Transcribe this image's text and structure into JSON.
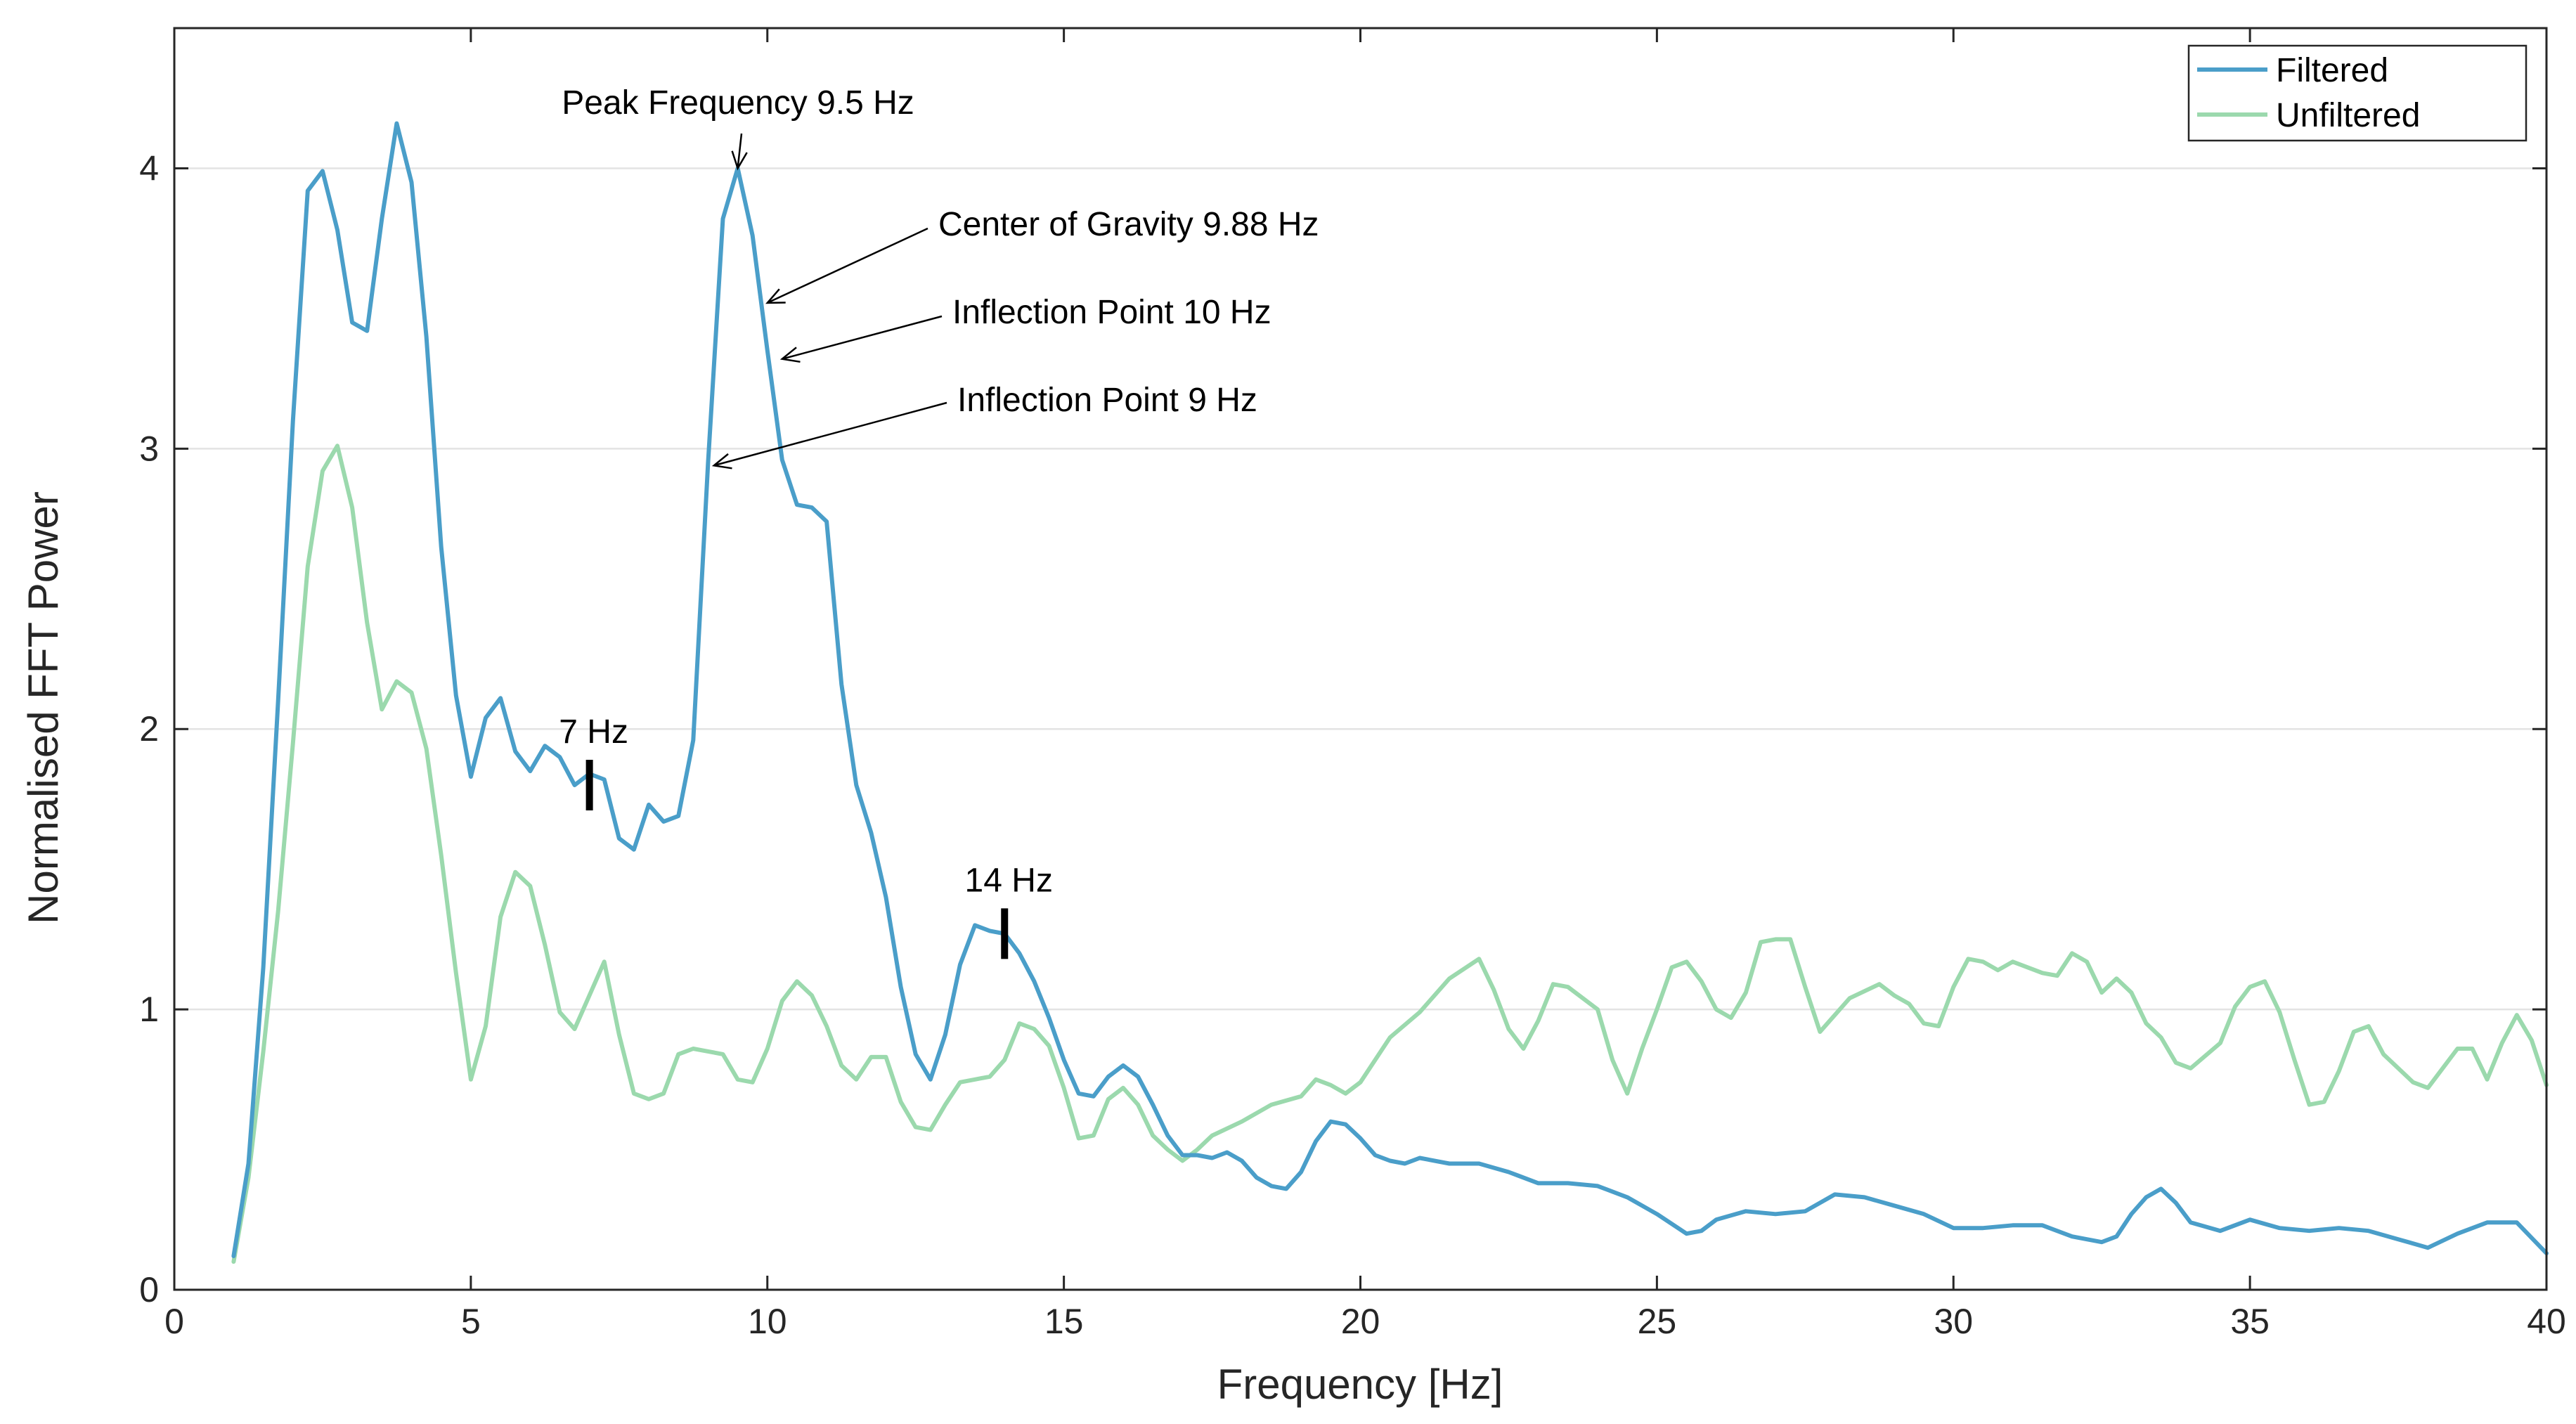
{
  "chart_data": {
    "type": "line",
    "xlabel": "Frequency [Hz]",
    "ylabel": "Normalised FFT Power",
    "xlim": [
      0,
      40
    ],
    "ylim": [
      0,
      4.5
    ],
    "xticks": [
      0,
      5,
      10,
      15,
      20,
      25,
      30,
      35,
      40
    ],
    "yticks": [
      0,
      1,
      2,
      3,
      4
    ],
    "grid": "horizontal",
    "legend_position": "top-right",
    "series": [
      {
        "name": "Filtered",
        "color": "#4a9ec9",
        "points": [
          [
            1.0,
            0.12
          ],
          [
            1.25,
            0.45
          ],
          [
            1.5,
            1.15
          ],
          [
            1.75,
            2.1
          ],
          [
            2.0,
            3.1
          ],
          [
            2.25,
            3.92
          ],
          [
            2.5,
            3.99
          ],
          [
            2.75,
            3.78
          ],
          [
            3.0,
            3.45
          ],
          [
            3.25,
            3.42
          ],
          [
            3.5,
            3.82
          ],
          [
            3.75,
            4.16
          ],
          [
            4.0,
            3.95
          ],
          [
            4.25,
            3.4
          ],
          [
            4.5,
            2.65
          ],
          [
            4.75,
            2.12
          ],
          [
            5.0,
            1.83
          ],
          [
            5.25,
            2.04
          ],
          [
            5.5,
            2.11
          ],
          [
            5.75,
            1.92
          ],
          [
            6.0,
            1.85
          ],
          [
            6.25,
            1.94
          ],
          [
            6.5,
            1.9
          ],
          [
            6.75,
            1.8
          ],
          [
            7.0,
            1.84
          ],
          [
            7.25,
            1.82
          ],
          [
            7.5,
            1.61
          ],
          [
            7.75,
            1.57
          ],
          [
            8.0,
            1.73
          ],
          [
            8.25,
            1.67
          ],
          [
            8.5,
            1.69
          ],
          [
            8.75,
            1.96
          ],
          [
            9.0,
            2.95
          ],
          [
            9.25,
            3.82
          ],
          [
            9.5,
            4.0
          ],
          [
            9.75,
            3.76
          ],
          [
            10.0,
            3.35
          ],
          [
            10.25,
            2.96
          ],
          [
            10.5,
            2.8
          ],
          [
            10.75,
            2.79
          ],
          [
            11.0,
            2.74
          ],
          [
            11.25,
            2.16
          ],
          [
            11.5,
            1.8
          ],
          [
            11.75,
            1.63
          ],
          [
            12.0,
            1.4
          ],
          [
            12.25,
            1.08
          ],
          [
            12.5,
            0.84
          ],
          [
            12.75,
            0.75
          ],
          [
            13.0,
            0.91
          ],
          [
            13.25,
            1.16
          ],
          [
            13.5,
            1.3
          ],
          [
            13.75,
            1.28
          ],
          [
            14.0,
            1.27
          ],
          [
            14.25,
            1.2
          ],
          [
            14.5,
            1.1
          ],
          [
            14.75,
            0.97
          ],
          [
            15.0,
            0.82
          ],
          [
            15.25,
            0.7
          ],
          [
            15.5,
            0.69
          ],
          [
            15.75,
            0.76
          ],
          [
            16.0,
            0.8
          ],
          [
            16.25,
            0.76
          ],
          [
            16.5,
            0.66
          ],
          [
            16.75,
            0.55
          ],
          [
            17.0,
            0.48
          ],
          [
            17.25,
            0.48
          ],
          [
            17.5,
            0.47
          ],
          [
            17.75,
            0.49
          ],
          [
            18.0,
            0.46
          ],
          [
            18.25,
            0.4
          ],
          [
            18.5,
            0.37
          ],
          [
            18.75,
            0.36
          ],
          [
            19.0,
            0.42
          ],
          [
            19.25,
            0.53
          ],
          [
            19.5,
            0.6
          ],
          [
            19.75,
            0.59
          ],
          [
            20.0,
            0.54
          ],
          [
            20.25,
            0.48
          ],
          [
            20.5,
            0.46
          ],
          [
            20.75,
            0.45
          ],
          [
            21.0,
            0.47
          ],
          [
            21.5,
            0.45
          ],
          [
            22.0,
            0.45
          ],
          [
            22.5,
            0.42
          ],
          [
            23.0,
            0.38
          ],
          [
            23.5,
            0.38
          ],
          [
            24.0,
            0.37
          ],
          [
            24.5,
            0.33
          ],
          [
            25.0,
            0.27
          ],
          [
            25.5,
            0.2
          ],
          [
            25.75,
            0.21
          ],
          [
            26.0,
            0.25
          ],
          [
            26.5,
            0.28
          ],
          [
            27.0,
            0.27
          ],
          [
            27.5,
            0.28
          ],
          [
            28.0,
            0.34
          ],
          [
            28.5,
            0.33
          ],
          [
            29.0,
            0.3
          ],
          [
            29.5,
            0.27
          ],
          [
            30.0,
            0.22
          ],
          [
            30.5,
            0.22
          ],
          [
            31.0,
            0.23
          ],
          [
            31.5,
            0.23
          ],
          [
            32.0,
            0.19
          ],
          [
            32.5,
            0.17
          ],
          [
            32.75,
            0.19
          ],
          [
            33.0,
            0.27
          ],
          [
            33.25,
            0.33
          ],
          [
            33.5,
            0.36
          ],
          [
            33.75,
            0.31
          ],
          [
            34.0,
            0.24
          ],
          [
            34.5,
            0.21
          ],
          [
            35.0,
            0.25
          ],
          [
            35.5,
            0.22
          ],
          [
            36.0,
            0.21
          ],
          [
            36.5,
            0.22
          ],
          [
            37.0,
            0.21
          ],
          [
            37.5,
            0.18
          ],
          [
            38.0,
            0.15
          ],
          [
            38.5,
            0.2
          ],
          [
            39.0,
            0.24
          ],
          [
            39.5,
            0.24
          ],
          [
            40.0,
            0.13
          ]
        ]
      },
      {
        "name": "Unfiltered",
        "color": "#9bd9ad",
        "points": [
          [
            1.0,
            0.1
          ],
          [
            1.25,
            0.4
          ],
          [
            1.5,
            0.85
          ],
          [
            1.75,
            1.35
          ],
          [
            2.0,
            1.95
          ],
          [
            2.25,
            2.58
          ],
          [
            2.5,
            2.92
          ],
          [
            2.75,
            3.01
          ],
          [
            3.0,
            2.79
          ],
          [
            3.25,
            2.38
          ],
          [
            3.5,
            2.07
          ],
          [
            3.75,
            2.17
          ],
          [
            4.0,
            2.13
          ],
          [
            4.25,
            1.93
          ],
          [
            4.5,
            1.55
          ],
          [
            4.75,
            1.13
          ],
          [
            5.0,
            0.75
          ],
          [
            5.25,
            0.94
          ],
          [
            5.5,
            1.33
          ],
          [
            5.75,
            1.49
          ],
          [
            6.0,
            1.44
          ],
          [
            6.25,
            1.23
          ],
          [
            6.5,
            0.99
          ],
          [
            6.75,
            0.93
          ],
          [
            7.0,
            1.05
          ],
          [
            7.25,
            1.17
          ],
          [
            7.5,
            0.91
          ],
          [
            7.75,
            0.7
          ],
          [
            8.0,
            0.68
          ],
          [
            8.25,
            0.7
          ],
          [
            8.5,
            0.84
          ],
          [
            8.75,
            0.86
          ],
          [
            9.0,
            0.85
          ],
          [
            9.25,
            0.84
          ],
          [
            9.5,
            0.75
          ],
          [
            9.75,
            0.74
          ],
          [
            10.0,
            0.86
          ],
          [
            10.25,
            1.03
          ],
          [
            10.5,
            1.1
          ],
          [
            10.75,
            1.05
          ],
          [
            11.0,
            0.94
          ],
          [
            11.25,
            0.8
          ],
          [
            11.5,
            0.75
          ],
          [
            11.75,
            0.83
          ],
          [
            12.0,
            0.83
          ],
          [
            12.25,
            0.67
          ],
          [
            12.5,
            0.58
          ],
          [
            12.75,
            0.57
          ],
          [
            13.0,
            0.66
          ],
          [
            13.25,
            0.74
          ],
          [
            13.5,
            0.75
          ],
          [
            13.75,
            0.76
          ],
          [
            14.0,
            0.82
          ],
          [
            14.25,
            0.95
          ],
          [
            14.5,
            0.93
          ],
          [
            14.75,
            0.87
          ],
          [
            15.0,
            0.72
          ],
          [
            15.25,
            0.54
          ],
          [
            15.5,
            0.55
          ],
          [
            15.75,
            0.68
          ],
          [
            16.0,
            0.72
          ],
          [
            16.25,
            0.66
          ],
          [
            16.5,
            0.55
          ],
          [
            16.75,
            0.5
          ],
          [
            17.0,
            0.46
          ],
          [
            17.25,
            0.5
          ],
          [
            17.5,
            0.55
          ],
          [
            18.0,
            0.6
          ],
          [
            18.5,
            0.66
          ],
          [
            19.0,
            0.69
          ],
          [
            19.25,
            0.75
          ],
          [
            19.5,
            0.73
          ],
          [
            19.75,
            0.7
          ],
          [
            20.0,
            0.74
          ],
          [
            20.5,
            0.9
          ],
          [
            21.0,
            0.99
          ],
          [
            21.5,
            1.11
          ],
          [
            22.0,
            1.18
          ],
          [
            22.25,
            1.07
          ],
          [
            22.5,
            0.93
          ],
          [
            22.75,
            0.86
          ],
          [
            23.0,
            0.96
          ],
          [
            23.25,
            1.09
          ],
          [
            23.5,
            1.08
          ],
          [
            24.0,
            1.0
          ],
          [
            24.25,
            0.82
          ],
          [
            24.5,
            0.7
          ],
          [
            24.75,
            0.86
          ],
          [
            25.0,
            1.0
          ],
          [
            25.25,
            1.15
          ],
          [
            25.5,
            1.17
          ],
          [
            25.75,
            1.1
          ],
          [
            26.0,
            1.0
          ],
          [
            26.25,
            0.97
          ],
          [
            26.5,
            1.06
          ],
          [
            26.75,
            1.24
          ],
          [
            27.0,
            1.25
          ],
          [
            27.25,
            1.25
          ],
          [
            27.5,
            1.08
          ],
          [
            27.75,
            0.92
          ],
          [
            28.0,
            0.98
          ],
          [
            28.25,
            1.04
          ],
          [
            28.75,
            1.09
          ],
          [
            29.0,
            1.05
          ],
          [
            29.25,
            1.02
          ],
          [
            29.5,
            0.95
          ],
          [
            29.75,
            0.94
          ],
          [
            30.0,
            1.08
          ],
          [
            30.25,
            1.18
          ],
          [
            30.5,
            1.17
          ],
          [
            30.75,
            1.14
          ],
          [
            31.0,
            1.17
          ],
          [
            31.5,
            1.13
          ],
          [
            31.75,
            1.12
          ],
          [
            32.0,
            1.2
          ],
          [
            32.25,
            1.17
          ],
          [
            32.5,
            1.06
          ],
          [
            32.75,
            1.11
          ],
          [
            33.0,
            1.06
          ],
          [
            33.25,
            0.95
          ],
          [
            33.5,
            0.9
          ],
          [
            33.75,
            0.81
          ],
          [
            34.0,
            0.79
          ],
          [
            34.5,
            0.88
          ],
          [
            34.75,
            1.01
          ],
          [
            35.0,
            1.08
          ],
          [
            35.25,
            1.1
          ],
          [
            35.5,
            0.99
          ],
          [
            35.75,
            0.82
          ],
          [
            36.0,
            0.66
          ],
          [
            36.25,
            0.67
          ],
          [
            36.5,
            0.78
          ],
          [
            36.75,
            0.92
          ],
          [
            37.0,
            0.94
          ],
          [
            37.25,
            0.84
          ],
          [
            37.75,
            0.74
          ],
          [
            38.0,
            0.72
          ],
          [
            38.5,
            0.86
          ],
          [
            38.75,
            0.86
          ],
          [
            39.0,
            0.75
          ],
          [
            39.25,
            0.88
          ],
          [
            39.5,
            0.98
          ],
          [
            39.75,
            0.89
          ],
          [
            40.0,
            0.73
          ]
        ]
      }
    ],
    "annotations": [
      {
        "text": "Peak Frequency 9.5 Hz",
        "target": [
          9.5,
          4.0
        ]
      },
      {
        "text": "Center of Gravity 9.88 Hz",
        "target": [
          10.0,
          3.52
        ]
      },
      {
        "text": "Inflection Point 10 Hz",
        "target": [
          10.25,
          3.32
        ]
      },
      {
        "text": "Inflection Point 9 Hz",
        "target": [
          9.1,
          2.94
        ]
      }
    ],
    "markers": [
      {
        "text": "7 Hz",
        "x": 7.0,
        "y": 1.8
      },
      {
        "text": "14 Hz",
        "x": 14.0,
        "y": 1.27
      }
    ]
  }
}
